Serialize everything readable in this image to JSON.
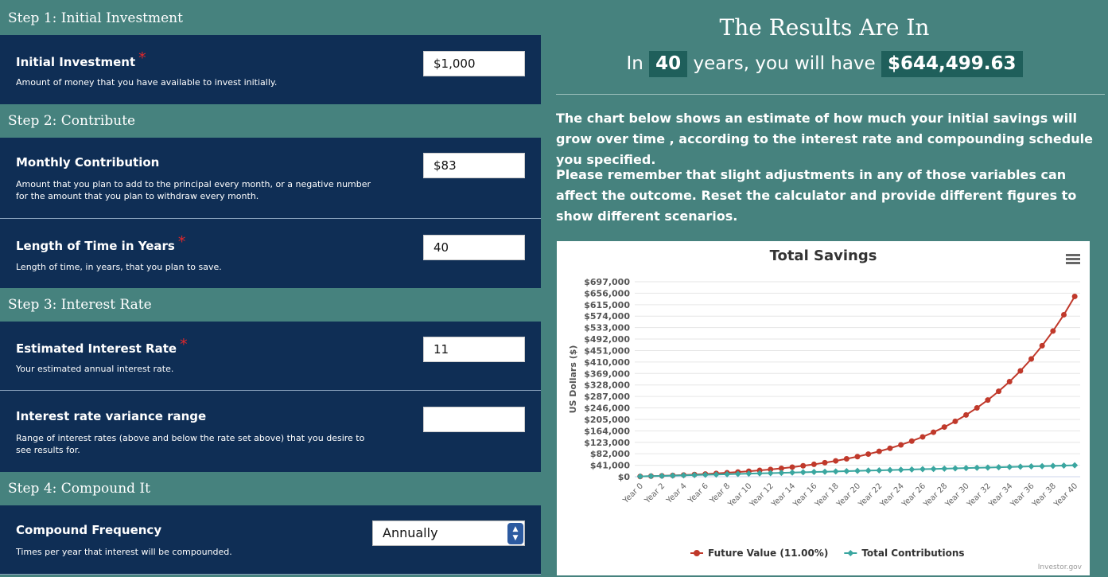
{
  "steps": {
    "step1": "Step 1: Initial Investment",
    "step2": "Step 2: Contribute",
    "step3": "Step 3: Interest Rate",
    "step4": "Step 4: Compound It"
  },
  "fields": {
    "initial": {
      "label": "Initial Investment",
      "required": "*",
      "desc": "Amount of money that you have available to invest initially.",
      "value": "$1,000"
    },
    "monthly": {
      "label": "Monthly Contribution",
      "desc": "Amount that you plan to add to the principal every month, or a negative number for the amount that you plan to withdraw every month.",
      "value": "$83"
    },
    "years": {
      "label": "Length of Time in Years",
      "required": "*",
      "desc": "Length of time, in years, that you plan to save.",
      "value": "40"
    },
    "rate": {
      "label": "Estimated Interest Rate",
      "required": "*",
      "desc": "Your estimated annual interest rate.",
      "value": "11"
    },
    "variance": {
      "label": "Interest rate variance range",
      "desc": "Range of interest rates (above and below the rate set above) that you desire to see results for.",
      "value": ""
    },
    "compound": {
      "label": "Compound Frequency",
      "desc": "Times per year that interest will be compounded.",
      "value": "Annually"
    }
  },
  "results": {
    "title": "The Results Are In",
    "in_text": "In",
    "years": "40",
    "will_have": "years, you will have",
    "amount": "$644,499.63",
    "para1": "The chart below shows an estimate of how much your initial savings will grow over time , according to the interest rate and compounding schedule you specified.",
    "para2": "Please remember that slight adjustments in any of those variables can affect the outcome. Reset the calculator and provide different figures to show different scenarios."
  },
  "chart_credit": "Investor.gov",
  "colors": {
    "future": "#c0392b",
    "contrib": "#3aa6a0"
  },
  "chart_data": {
    "type": "line",
    "title": "Total Savings",
    "ylabel": "US Dollars ($)",
    "xlabel": "",
    "ylim": [
      0,
      697000
    ],
    "yticks": [
      "$0",
      "$41,000",
      "$82,000",
      "$123,000",
      "$164,000",
      "$205,000",
      "$246,000",
      "$287,000",
      "$328,000",
      "$369,000",
      "$410,000",
      "$451,000",
      "$492,000",
      "$533,000",
      "$574,000",
      "$615,000",
      "$656,000",
      "$697,000"
    ],
    "ytick_values": [
      0,
      41000,
      82000,
      123000,
      164000,
      205000,
      246000,
      287000,
      328000,
      369000,
      410000,
      451000,
      492000,
      533000,
      574000,
      615000,
      656000,
      697000
    ],
    "x": [
      "Year 0",
      "Year 1",
      "Year 2",
      "Year 3",
      "Year 4",
      "Year 5",
      "Year 6",
      "Year 7",
      "Year 8",
      "Year 9",
      "Year 10",
      "Year 11",
      "Year 12",
      "Year 13",
      "Year 14",
      "Year 15",
      "Year 16",
      "Year 17",
      "Year 18",
      "Year 19",
      "Year 20",
      "Year 21",
      "Year 22",
      "Year 23",
      "Year 24",
      "Year 25",
      "Year 26",
      "Year 27",
      "Year 28",
      "Year 29",
      "Year 30",
      "Year 31",
      "Year 32",
      "Year 33",
      "Year 34",
      "Year 35",
      "Year 36",
      "Year 37",
      "Year 38",
      "Year 39",
      "Year 40"
    ],
    "x_tick_labels": [
      "Year 0",
      "Year 2",
      "Year 4",
      "Year 6",
      "Year 8",
      "Year 10",
      "Year 12",
      "Year 14",
      "Year 16",
      "Year 18",
      "Year 20",
      "Year 22",
      "Year 24",
      "Year 26",
      "Year 28",
      "Year 30",
      "Year 32",
      "Year 34",
      "Year 36",
      "Year 38",
      "Year 40"
    ],
    "legend": "bottom-center",
    "series": [
      {
        "name": "Future Value (11.00%)",
        "values": [
          1000,
          2106,
          3333,
          4694,
          6206,
          7883,
          9745,
          11811,
          14105,
          16651,
          19477,
          22614,
          26096,
          29961,
          34251,
          39013,
          44299,
          50166,
          56679,
          63908,
          71932,
          80839,
          90726,
          101700,
          113881,
          127403,
          142411,
          159071,
          177564,
          198090,
          220874,
          246165,
          274238,
          305399,
          339988,
          378382,
          421000,
          468305,
          520812,
          579094,
          644500
        ]
      },
      {
        "name": "Total Contributions",
        "values": [
          1000,
          1996,
          2992,
          3988,
          4984,
          5980,
          6976,
          7972,
          8968,
          9964,
          10960,
          11956,
          12952,
          13948,
          14944,
          15940,
          16936,
          17932,
          18928,
          19924,
          20920,
          21916,
          22912,
          23908,
          24904,
          25900,
          26896,
          27892,
          28888,
          29884,
          30880,
          31876,
          32872,
          33868,
          34864,
          35860,
          36856,
          37852,
          38848,
          39844,
          40840
        ]
      }
    ]
  }
}
